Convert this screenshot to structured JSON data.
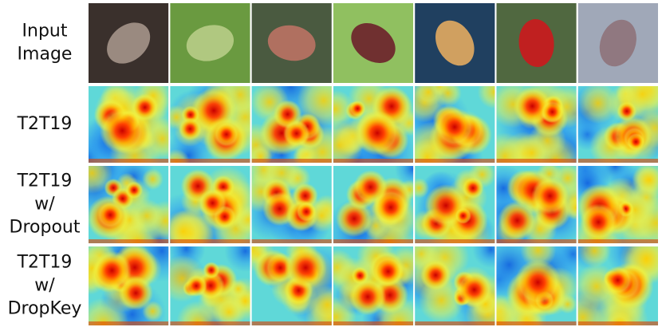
{
  "rows": [
    {
      "label": [
        "Input",
        "Image"
      ]
    },
    {
      "label": [
        "T2T19"
      ]
    },
    {
      "label": [
        "T2T19",
        "w/",
        "Dropout"
      ]
    },
    {
      "label": [
        "T2T19",
        "w/",
        "DropKey"
      ]
    }
  ]
}
